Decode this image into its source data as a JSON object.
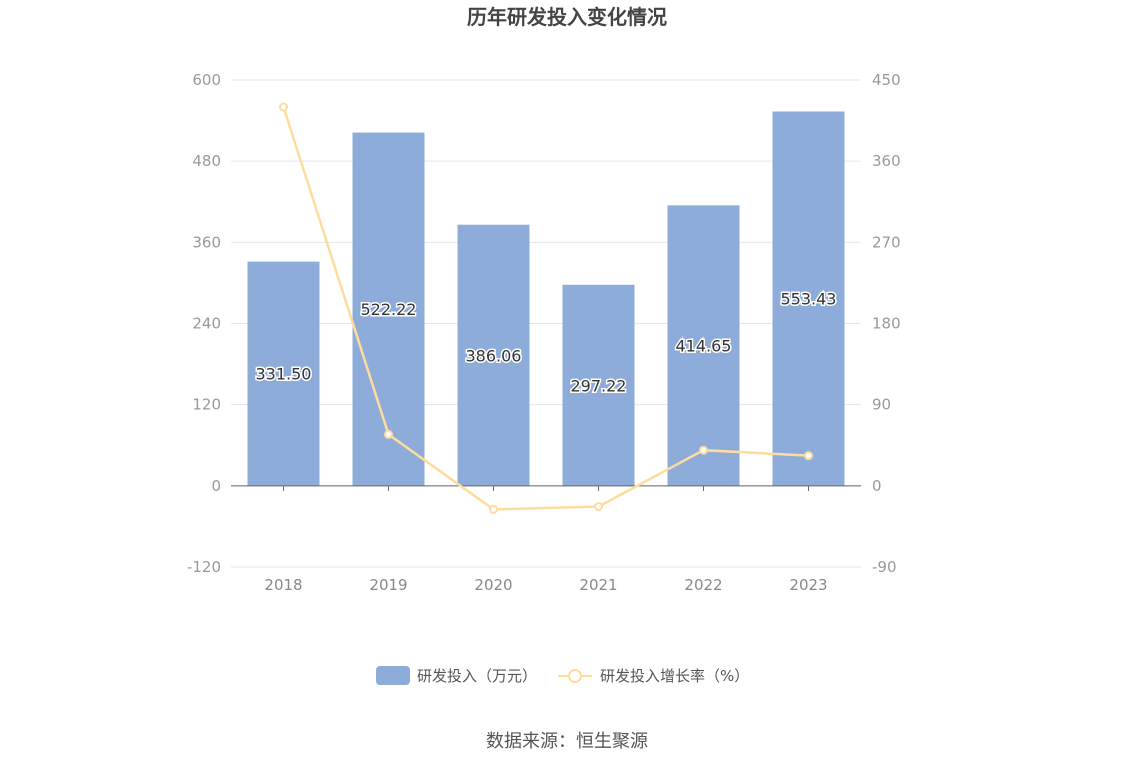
{
  "title": "历年研发投入变化情况",
  "source": "数据来源：恒生聚源",
  "colors": {
    "bar": "#8eacd9",
    "line": "#fddc9d",
    "grid": "#e3e6f0",
    "axis": "#666666"
  },
  "chart_data": {
    "type": "bar",
    "categories": [
      "2018",
      "2019",
      "2020",
      "2021",
      "2022",
      "2023"
    ],
    "series": [
      {
        "name": "研发投入（万元）",
        "type": "bar",
        "axis": "left",
        "values": [
          331.5,
          522.22,
          386.06,
          297.22,
          414.65,
          553.43
        ],
        "labels": [
          "331.50",
          "522.22",
          "386.06",
          "297.22",
          "414.65",
          "553.43"
        ]
      },
      {
        "name": "研发投入增长率（%）",
        "type": "line",
        "axis": "right",
        "values": [
          420,
          57,
          -26.08,
          -23.01,
          39.51,
          33.47
        ]
      }
    ],
    "y_left": {
      "min": -120,
      "max": 600,
      "ticks": [
        "-120",
        "0",
        "120",
        "240",
        "360",
        "480",
        "600"
      ]
    },
    "y_right": {
      "min": -90,
      "max": 450,
      "ticks": [
        "-90",
        "0",
        "90",
        "180",
        "270",
        "360",
        "450"
      ]
    },
    "grid": true,
    "legend": "bottom-center"
  }
}
